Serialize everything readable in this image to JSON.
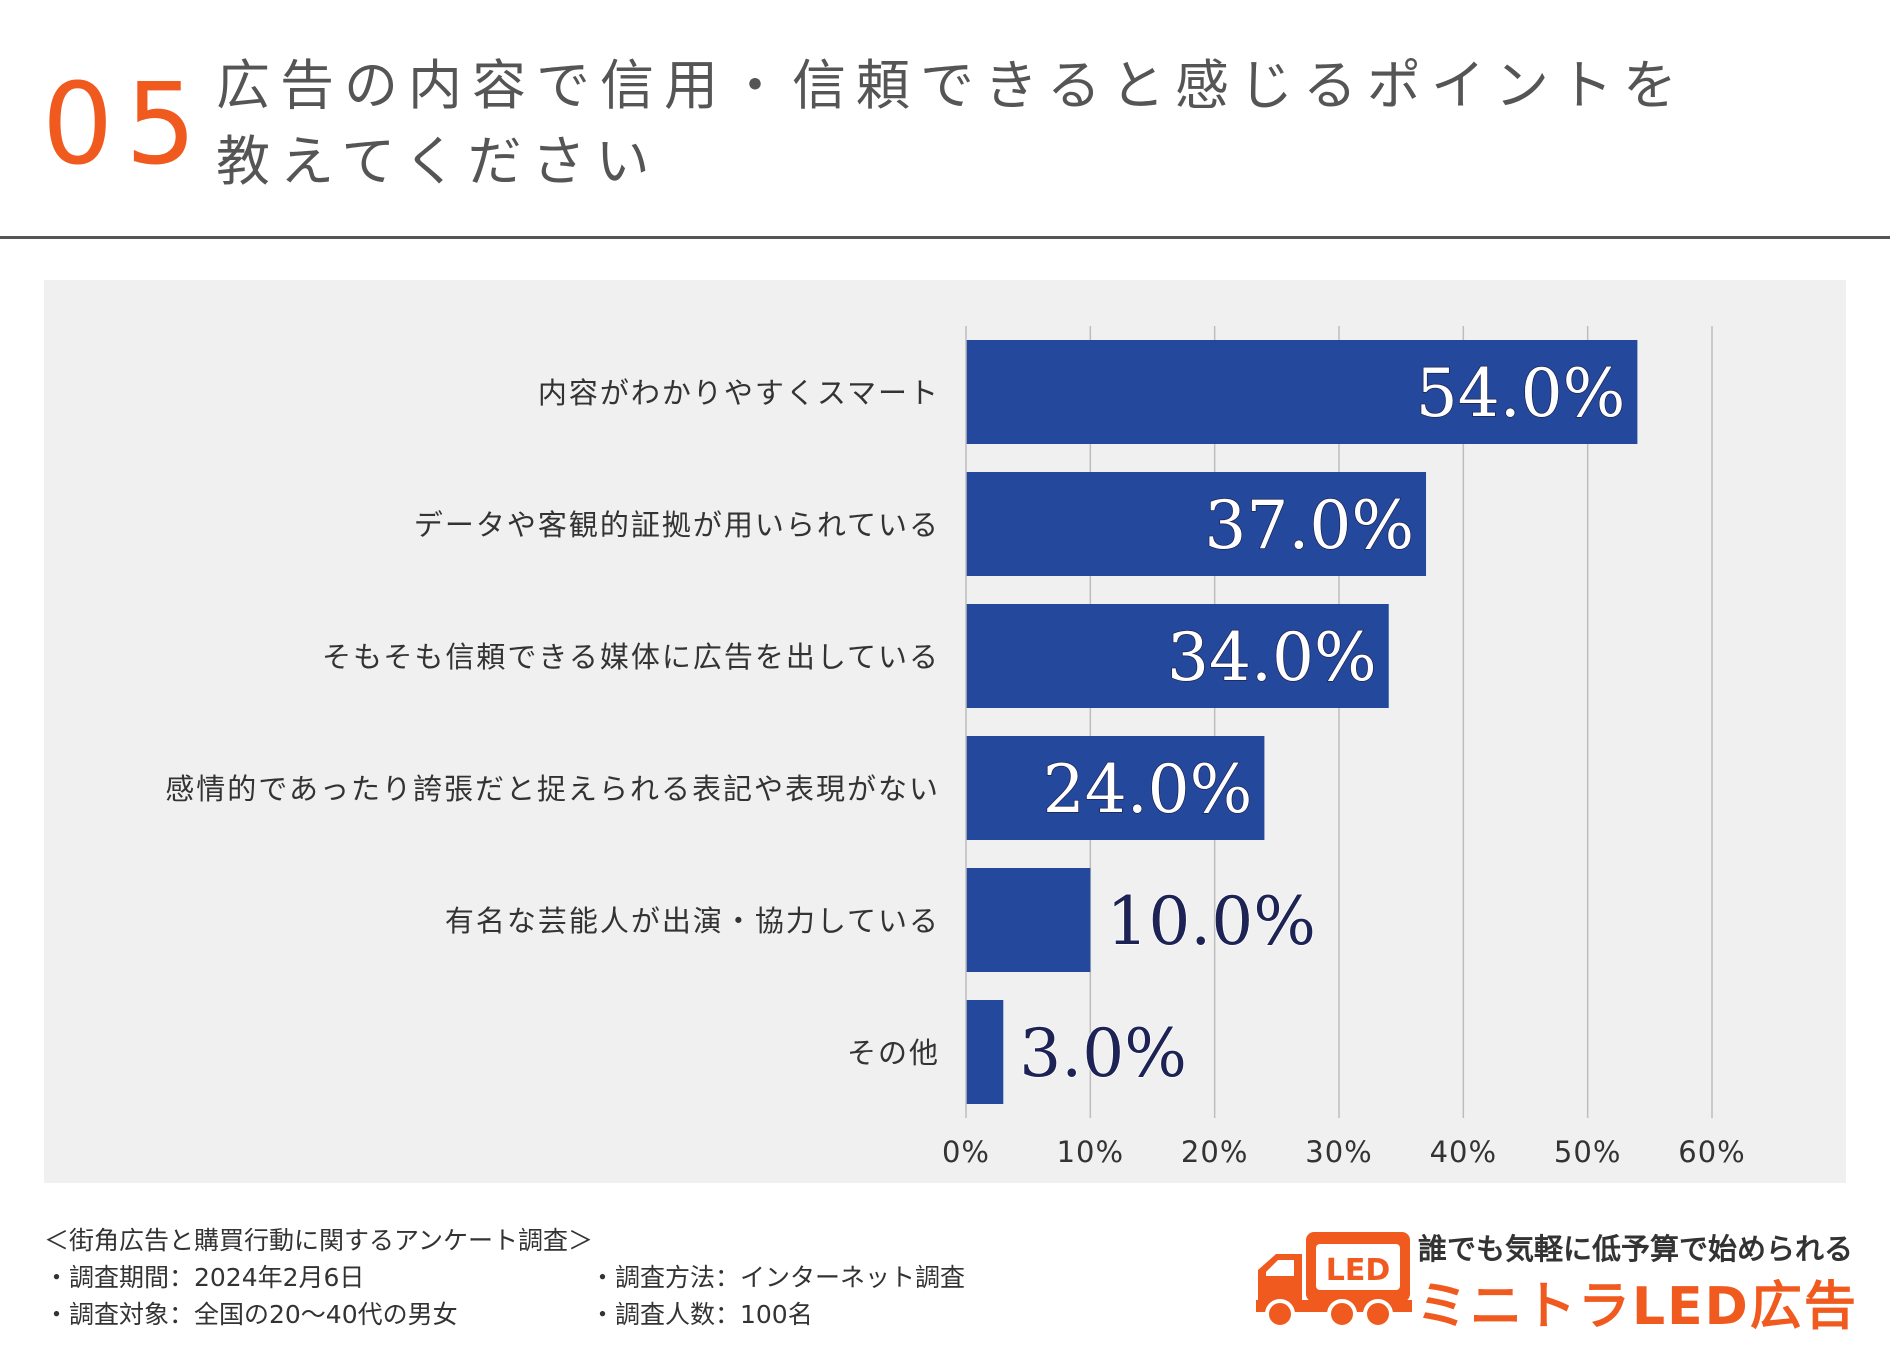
{
  "header": {
    "number": "05",
    "title": "広告の内容で信用・信頼できると感じるポイントを教えてください"
  },
  "chart_data": {
    "type": "bar",
    "orientation": "horizontal",
    "categories": [
      "内容がわかりやすくスマート",
      "データや客観的証拠が用いられている",
      "そもそも信頼できる媒体に広告を出している",
      "感情的であったり誇張だと捉えられる表記や表現がない",
      "有名な芸能人が出演・協力している",
      "その他"
    ],
    "values": [
      54.0,
      37.0,
      34.0,
      24.0,
      10.0,
      3.0
    ],
    "value_labels": [
      "54.0%",
      "37.0%",
      "34.0%",
      "24.0%",
      "10.0%",
      "3.0%"
    ],
    "xlim": [
      0,
      60
    ],
    "x_ticks": [
      "0%",
      "10%",
      "20%",
      "30%",
      "40%",
      "50%",
      "60%"
    ],
    "grid": true,
    "bar_color": "#24499c",
    "title": "",
    "xlabel": "",
    "ylabel": ""
  },
  "survey": {
    "title": "＜街角広告と購買行動に関するアンケート調査＞",
    "period": "・調査期間：2024年2月6日",
    "method": "・調査方法：インターネット調査",
    "target": "・調査対象：全国の20〜40代の男女",
    "count": "・調査人数：100名"
  },
  "brand": {
    "tagline": "誰でも気軽に低予算で始められる",
    "name": "ミニトラLED広告",
    "logo_text": "LED",
    "accent_color": "#f05a1e"
  }
}
